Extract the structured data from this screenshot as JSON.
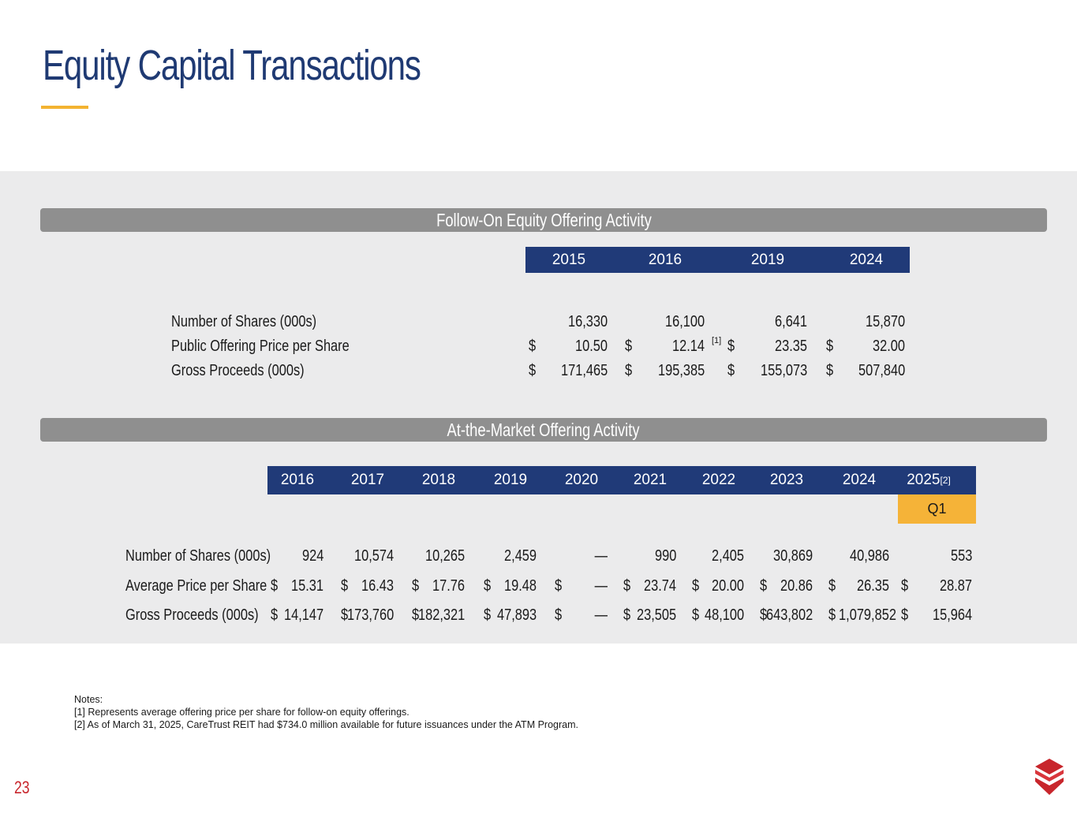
{
  "title": "Equity Capital Transactions",
  "colors": {
    "navy": "#203a78",
    "accent": "#f3b331",
    "gray_header": "#8f8f8f",
    "band": "#ebebec",
    "red": "#c8262c"
  },
  "follow_on": {
    "header": "Follow-On Equity Offering Activity",
    "years": [
      "2015",
      "2016",
      "2019",
      "2024"
    ],
    "rows": [
      {
        "label": "Number of Shares (000s)",
        "values": [
          "16,330",
          "16,100",
          "6,641",
          "15,870"
        ],
        "dollar": false
      },
      {
        "label": "Public Offering Price per Share",
        "values": [
          "10.50",
          "12.14",
          "23.35",
          "32.00"
        ],
        "dollar": true
      },
      {
        "label": "Gross Proceeds (000s)",
        "values": [
          "171,465",
          "195,385",
          "155,073",
          "507,840"
        ],
        "dollar": true
      }
    ],
    "footnote_mark": "[1]"
  },
  "atm": {
    "header": "At-the-Market Offering Activity",
    "years": [
      "2016",
      "2017",
      "2018",
      "2019",
      "2020",
      "2021",
      "2022",
      "2023",
      "2024",
      "2025"
    ],
    "last_year_footnote": "[2]",
    "sub_label": "Q1",
    "rows": [
      {
        "label": "Number of Shares (000s)",
        "values": [
          "924",
          "10,574",
          "10,265",
          "2,459",
          "—",
          "990",
          "2,405",
          "30,869",
          "40,986",
          "553"
        ],
        "dollar": false
      },
      {
        "label": "Average Price per Share",
        "values": [
          "15.31",
          "16.43",
          "17.76",
          "19.48",
          "—",
          "23.74",
          "20.00",
          "20.86",
          "26.35",
          "28.87"
        ],
        "dollar": true
      },
      {
        "label": "Gross Proceeds (000s)",
        "values": [
          "14,147",
          "173,760",
          "182,321",
          "47,893",
          "—",
          "23,505",
          "48,100",
          "643,802",
          "1,079,852",
          "15,964"
        ],
        "dollar": true
      }
    ]
  },
  "currency_symbol": "$",
  "notes": {
    "heading": "Notes:",
    "items": [
      "[1] Represents average offering price per share for follow-on equity offerings.",
      "[2] As of March 31, 2025, CareTrust REIT had $734.0 million available for future issuances under the ATM Program."
    ]
  },
  "page_number": "23"
}
